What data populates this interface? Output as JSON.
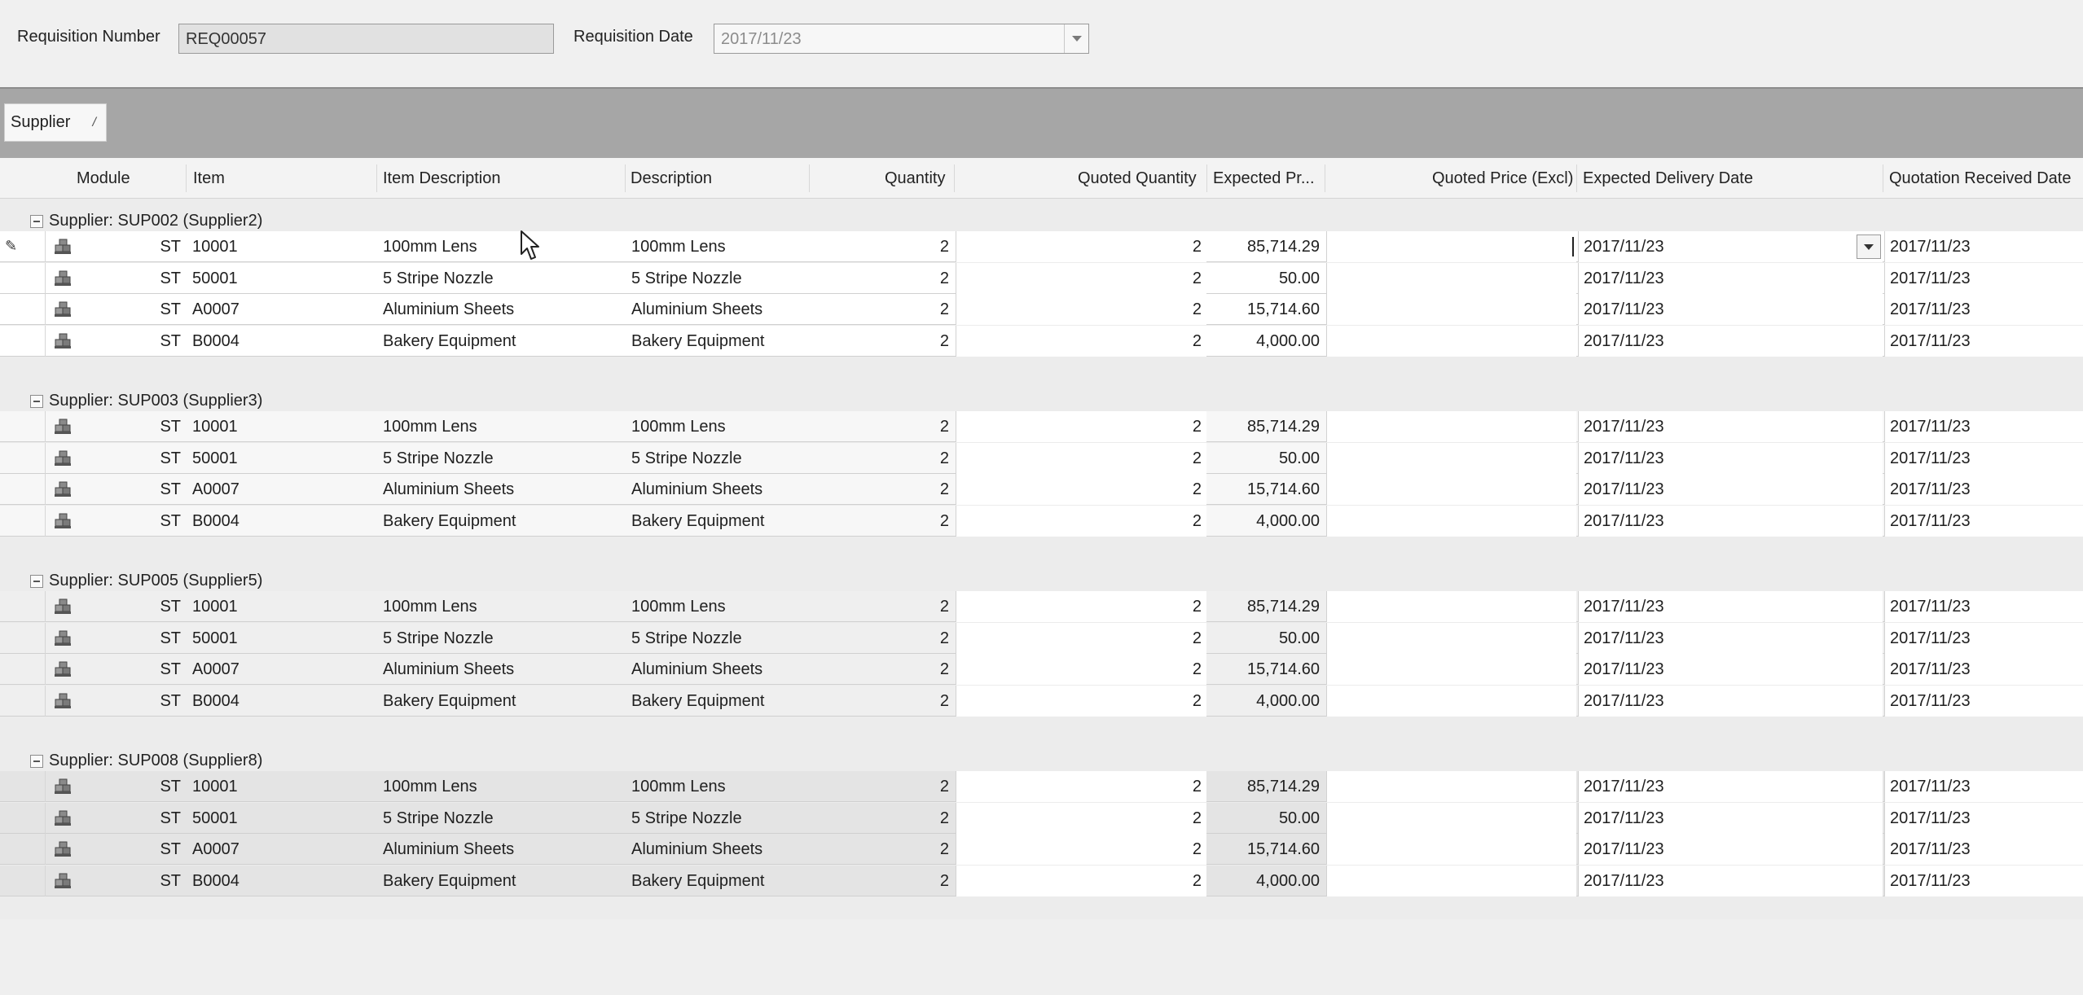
{
  "header": {
    "requisition_number_label": "Requisition Number",
    "requisition_number_value": "REQ00057",
    "requisition_date_label": "Requisition Date",
    "requisition_date_value": "2017/11/23"
  },
  "group_by": {
    "chip_label": "Supplier",
    "sort_glyph": "/"
  },
  "columns": {
    "module": "Module",
    "item": "Item",
    "item_description": "Item Description",
    "description": "Description",
    "quantity": "Quantity",
    "quoted_quantity": "Quoted Quantity",
    "expected_price": "Expected Pr...",
    "quoted_price": "Quoted Price (Excl)",
    "expected_delivery_date": "Expected Delivery Date",
    "quotation_received_date": "Quotation Received Date"
  },
  "icons": {
    "row_module": "stock-module-icon",
    "row_editing": "pencil-icon",
    "group_toggle": "collapse-minus-icon",
    "dropdown": "chevron-down-icon"
  },
  "colors": {
    "groupbar_bg": "#a6a6a6",
    "editable_cell_bg": "#ffffff",
    "readonly_cell_bg": "#f3f3f3"
  },
  "groups": [
    {
      "label": "Supplier: SUP002 (Supplier2)",
      "rows": [
        {
          "module": "ST",
          "item": "10001",
          "item_description": "100mm Lens",
          "description": "100mm Lens",
          "quantity": "2",
          "quoted_quantity": "2",
          "expected_price": "85,714.29",
          "quoted_price": "",
          "expected_delivery_date": "2017/11/23",
          "quotation_received_date": "2017/11/23"
        },
        {
          "module": "ST",
          "item": "50001",
          "item_description": "5 Stripe Nozzle",
          "description": "5 Stripe Nozzle",
          "quantity": "2",
          "quoted_quantity": "2",
          "expected_price": "50.00",
          "quoted_price": "",
          "expected_delivery_date": "2017/11/23",
          "quotation_received_date": "2017/11/23"
        },
        {
          "module": "ST",
          "item": "A0007",
          "item_description": "Aluminium Sheets",
          "description": "Aluminium Sheets",
          "quantity": "2",
          "quoted_quantity": "2",
          "expected_price": "15,714.60",
          "quoted_price": "",
          "expected_delivery_date": "2017/11/23",
          "quotation_received_date": "2017/11/23"
        },
        {
          "module": "ST",
          "item": "B0004",
          "item_description": "Bakery Equipment",
          "description": "Bakery Equipment",
          "quantity": "2",
          "quoted_quantity": "2",
          "expected_price": "4,000.00",
          "quoted_price": "",
          "expected_delivery_date": "2017/11/23",
          "quotation_received_date": "2017/11/23"
        }
      ]
    },
    {
      "label": "Supplier: SUP003 (Supplier3)",
      "rows": [
        {
          "module": "ST",
          "item": "10001",
          "item_description": "100mm Lens",
          "description": "100mm Lens",
          "quantity": "2",
          "quoted_quantity": "2",
          "expected_price": "85,714.29",
          "quoted_price": "",
          "expected_delivery_date": "2017/11/23",
          "quotation_received_date": "2017/11/23"
        },
        {
          "module": "ST",
          "item": "50001",
          "item_description": "5 Stripe Nozzle",
          "description": "5 Stripe Nozzle",
          "quantity": "2",
          "quoted_quantity": "2",
          "expected_price": "50.00",
          "quoted_price": "",
          "expected_delivery_date": "2017/11/23",
          "quotation_received_date": "2017/11/23"
        },
        {
          "module": "ST",
          "item": "A0007",
          "item_description": "Aluminium Sheets",
          "description": "Aluminium Sheets",
          "quantity": "2",
          "quoted_quantity": "2",
          "expected_price": "15,714.60",
          "quoted_price": "",
          "expected_delivery_date": "2017/11/23",
          "quotation_received_date": "2017/11/23"
        },
        {
          "module": "ST",
          "item": "B0004",
          "item_description": "Bakery Equipment",
          "description": "Bakery Equipment",
          "quantity": "2",
          "quoted_quantity": "2",
          "expected_price": "4,000.00",
          "quoted_price": "",
          "expected_delivery_date": "2017/11/23",
          "quotation_received_date": "2017/11/23"
        }
      ]
    },
    {
      "label": "Supplier: SUP005 (Supplier5)",
      "rows": [
        {
          "module": "ST",
          "item": "10001",
          "item_description": "100mm Lens",
          "description": "100mm Lens",
          "quantity": "2",
          "quoted_quantity": "2",
          "expected_price": "85,714.29",
          "quoted_price": "",
          "expected_delivery_date": "2017/11/23",
          "quotation_received_date": "2017/11/23"
        },
        {
          "module": "ST",
          "item": "50001",
          "item_description": "5 Stripe Nozzle",
          "description": "5 Stripe Nozzle",
          "quantity": "2",
          "quoted_quantity": "2",
          "expected_price": "50.00",
          "quoted_price": "",
          "expected_delivery_date": "2017/11/23",
          "quotation_received_date": "2017/11/23"
        },
        {
          "module": "ST",
          "item": "A0007",
          "item_description": "Aluminium Sheets",
          "description": "Aluminium Sheets",
          "quantity": "2",
          "quoted_quantity": "2",
          "expected_price": "15,714.60",
          "quoted_price": "",
          "expected_delivery_date": "2017/11/23",
          "quotation_received_date": "2017/11/23"
        },
        {
          "module": "ST",
          "item": "B0004",
          "item_description": "Bakery Equipment",
          "description": "Bakery Equipment",
          "quantity": "2",
          "quoted_quantity": "2",
          "expected_price": "4,000.00",
          "quoted_price": "",
          "expected_delivery_date": "2017/11/23",
          "quotation_received_date": "2017/11/23"
        }
      ]
    },
    {
      "label": "Supplier: SUP008 (Supplier8)",
      "rows": [
        {
          "module": "ST",
          "item": "10001",
          "item_description": "100mm Lens",
          "description": "100mm Lens",
          "quantity": "2",
          "quoted_quantity": "2",
          "expected_price": "85,714.29",
          "quoted_price": "",
          "expected_delivery_date": "2017/11/23",
          "quotation_received_date": "2017/11/23"
        },
        {
          "module": "ST",
          "item": "50001",
          "item_description": "5 Stripe Nozzle",
          "description": "5 Stripe Nozzle",
          "quantity": "2",
          "quoted_quantity": "2",
          "expected_price": "50.00",
          "quoted_price": "",
          "expected_delivery_date": "2017/11/23",
          "quotation_received_date": "2017/11/23"
        },
        {
          "module": "ST",
          "item": "A0007",
          "item_description": "Aluminium Sheets",
          "description": "Aluminium Sheets",
          "quantity": "2",
          "quoted_quantity": "2",
          "expected_price": "15,714.60",
          "quoted_price": "",
          "expected_delivery_date": "2017/11/23",
          "quotation_received_date": "2017/11/23"
        },
        {
          "module": "ST",
          "item": "B0004",
          "item_description": "Bakery Equipment",
          "description": "Bakery Equipment",
          "quantity": "2",
          "quoted_quantity": "2",
          "expected_price": "4,000.00",
          "quoted_price": "",
          "expected_delivery_date": "2017/11/23",
          "quotation_received_date": "2017/11/23"
        }
      ]
    }
  ]
}
